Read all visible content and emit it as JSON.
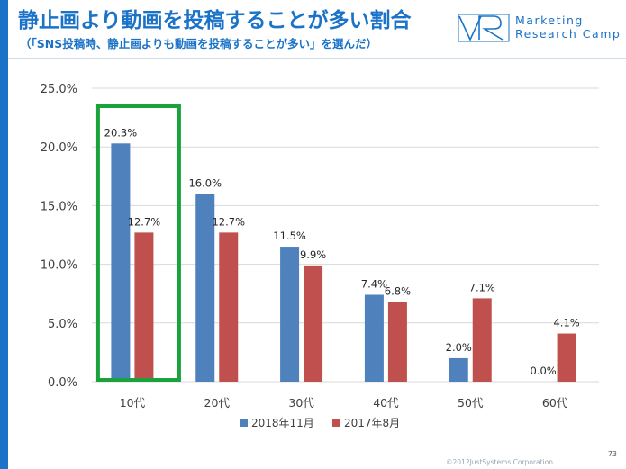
{
  "header": {
    "title": "静止画より動画を投稿することが多い割合",
    "subtitle": "（「SNS投稿時、静止画よりも動画を投稿することが多い」を選んだ）",
    "logo_line1": "Marketing",
    "logo_line2": "Research Camp"
  },
  "footer": {
    "copyright": "©2012JustSystems Corporation",
    "page_number": "73"
  },
  "colors": {
    "series_2018": "#4f81bd",
    "series_2017": "#c0504d",
    "highlight": "#1aa33c",
    "accent": "#1a73c8"
  },
  "chart_data": {
    "type": "bar",
    "categories": [
      "10代",
      "20代",
      "30代",
      "40代",
      "50代",
      "60代"
    ],
    "series": [
      {
        "name": "2018年11月",
        "values": [
          20.3,
          16.0,
          11.5,
          7.4,
          2.0,
          0.0
        ],
        "labels": [
          "20.3%",
          "16.0%",
          "11.5%",
          "7.4%",
          "2.0%",
          "0.0%"
        ]
      },
      {
        "name": "2017年8月",
        "values": [
          12.7,
          12.7,
          9.9,
          6.8,
          7.1,
          4.1
        ],
        "labels": [
          "12.7%",
          "12.7%",
          "9.9%",
          "6.8%",
          "7.1%",
          "4.1%"
        ]
      }
    ],
    "ylim": [
      0,
      25
    ],
    "yticks": [
      0,
      5,
      10,
      15,
      20,
      25
    ],
    "ytick_labels": [
      "0.0%",
      "5.0%",
      "10.0%",
      "15.0%",
      "20.0%",
      "25.0%"
    ],
    "grid": true,
    "legend": "bottom-center",
    "highlighted_category": "10代"
  }
}
